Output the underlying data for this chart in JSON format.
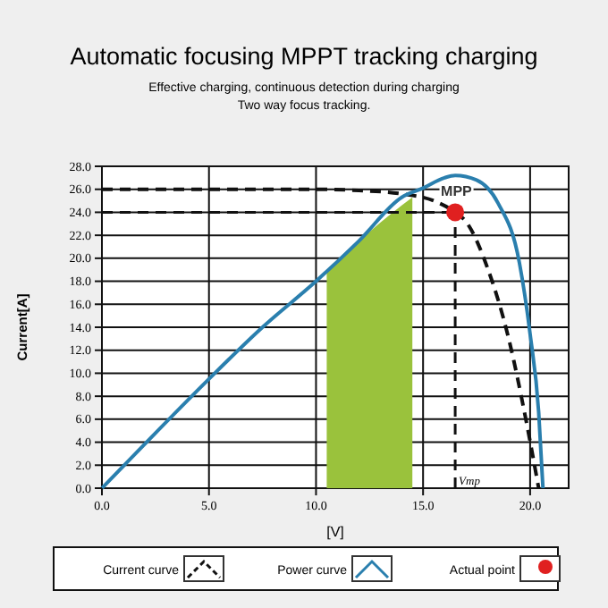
{
  "chart_data": {
    "type": "line",
    "title": "Automatic focusing MPPT tracking charging",
    "subtitle": "Effective charging, continuous detection during charging\nTwo way focus tracking.",
    "xlabel": "[V]",
    "ylabel": "Current[A]",
    "xlim": [
      0,
      21.8
    ],
    "ylim": [
      0,
      28
    ],
    "xticks": [
      {
        "value": 0,
        "label": "0.0"
      },
      {
        "value": 5,
        "label": "5.0"
      },
      {
        "value": 10,
        "label": "10.0"
      },
      {
        "value": 15,
        "label": "15.0"
      },
      {
        "value": 20,
        "label": "20.0"
      }
    ],
    "yticks": [
      {
        "value": 0,
        "label": "0.0"
      },
      {
        "value": 2,
        "label": "2.0"
      },
      {
        "value": 4,
        "label": "4.0"
      },
      {
        "value": 6,
        "label": "6.0"
      },
      {
        "value": 8,
        "label": "8.0"
      },
      {
        "value": 10,
        "label": "10.0"
      },
      {
        "value": 12,
        "label": "12.0"
      },
      {
        "value": 14,
        "label": "14.0"
      },
      {
        "value": 16,
        "label": "16.0"
      },
      {
        "value": 18,
        "label": "18.0"
      },
      {
        "value": 20,
        "label": "20.0"
      },
      {
        "value": 22,
        "label": "22.0"
      },
      {
        "value": 24,
        "label": "24.0"
      },
      {
        "value": 26,
        "label": "26.0"
      },
      {
        "value": 28,
        "label": "28.0"
      }
    ],
    "grid": true,
    "legend": "bottom",
    "series": [
      {
        "type": "area",
        "color": "#9ac23c",
        "x": [
          10.5,
          11,
          12,
          13,
          14,
          14.5
        ],
        "values": [
          19,
          19.9,
          21.5,
          23.1,
          24.6,
          25.3
        ]
      },
      {
        "name": "Current curve",
        "line_style": "dashed",
        "color": "#111111",
        "x": [
          0,
          5,
          10,
          12,
          14,
          15.5,
          16.5,
          17,
          18,
          19,
          19.8,
          20.4
        ],
        "values": [
          26,
          26,
          26,
          25.9,
          25.6,
          25,
          24,
          23.2,
          19.2,
          13,
          6,
          0
        ]
      },
      {
        "name": "Power curve",
        "line_style": "solid",
        "color": "#2a7fae",
        "x": [
          0,
          2.5,
          5,
          7.5,
          10,
          12,
          14,
          15,
          16,
          16.5,
          17.5,
          18.5,
          19.5,
          20,
          20.4,
          20.6
        ],
        "values": [
          0,
          4.8,
          9.5,
          14,
          18,
          21.5,
          25.3,
          26.1,
          27,
          27.2,
          26.8,
          24.8,
          19.6,
          13.4,
          6.6,
          0
        ]
      },
      {
        "name": "Actual point",
        "type": "scatter",
        "marker": "circle",
        "color": "#e02020",
        "x": [
          16.5
        ],
        "values": [
          24
        ]
      }
    ],
    "ref_lines": [
      {
        "axis": "y",
        "value": 24,
        "line_style": "dashed",
        "color": "#111111"
      },
      {
        "axis": "x",
        "value": 16.5,
        "label": "Vmp",
        "line_style": "dashed",
        "color": "#111111"
      }
    ],
    "annotations": [
      {
        "text": "MPP",
        "x": 16.5,
        "y": 24
      }
    ]
  }
}
